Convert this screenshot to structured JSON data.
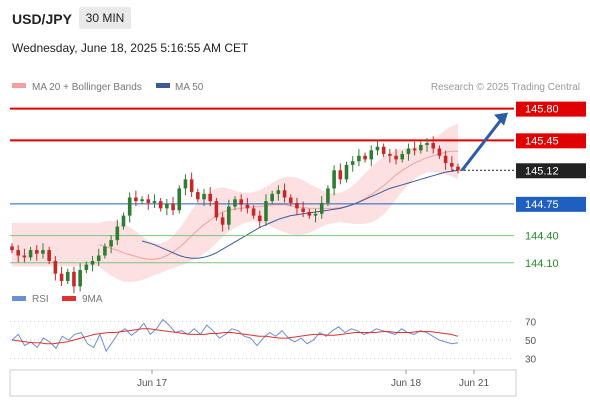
{
  "header": {
    "symbol": "USD/JPY",
    "timeframe": "30 MIN",
    "datetime": "Wednesday, June 18, 2025 5:16:55 AM CET"
  },
  "legend": {
    "ma20": "MA 20 + Bollinger Bands",
    "ma50": "MA 50",
    "credit": "Research © 2025 Trading Central"
  },
  "colors": {
    "resistance": "#e00000",
    "support_blue": "#1f5fbf",
    "support_green": "#7cc47c",
    "up_candle": "#2e7d32",
    "down_candle": "#c62828",
    "bollinger_fill": "#fde0e2",
    "ma20": "#f2a0a0",
    "ma50": "#3a5a9a",
    "rsi": "#6b8fd6",
    "rsi_ma": "#e03030"
  },
  "chart_data": {
    "type": "candlestick",
    "price_range": [
      143.8,
      145.95
    ],
    "current_price": 145.12,
    "levels": [
      {
        "value": 145.8,
        "label": "145.80",
        "kind": "resistance",
        "color": "#e00000"
      },
      {
        "value": 145.45,
        "label": "145.45",
        "kind": "resistance",
        "color": "#e00000"
      },
      {
        "value": 144.75,
        "label": "144.75",
        "kind": "pivot",
        "color": "#1f5fbf"
      },
      {
        "value": 144.4,
        "label": "144.40",
        "kind": "support",
        "color": "#2a8a2a"
      },
      {
        "value": 144.1,
        "label": "144.10",
        "kind": "support",
        "color": "#2a8a2a"
      }
    ],
    "closes": [
      144.24,
      144.18,
      144.16,
      144.24,
      144.2,
      144.24,
      144.12,
      143.98,
      143.9,
      144.0,
      143.84,
      144.02,
      144.08,
      144.12,
      144.18,
      144.28,
      144.35,
      144.5,
      144.62,
      144.82,
      144.78,
      144.8,
      144.76,
      144.78,
      144.7,
      144.75,
      144.68,
      144.92,
      145.02,
      144.88,
      144.8,
      144.86,
      144.78,
      144.6,
      144.52,
      144.72,
      144.8,
      144.74,
      144.7,
      144.62,
      144.56,
      144.78,
      144.86,
      144.9,
      144.82,
      144.76,
      144.7,
      144.66,
      144.62,
      144.64,
      144.76,
      144.92,
      145.12,
      145.02,
      145.18,
      145.22,
      145.28,
      145.24,
      145.34,
      145.38,
      145.3,
      145.28,
      145.24,
      145.3,
      145.36,
      145.34,
      145.4,
      145.42,
      145.36,
      145.28,
      145.2,
      145.16,
      145.12
    ],
    "ma20": [
      144.3,
      144.28,
      144.26,
      144.24,
      144.21,
      144.19,
      144.17,
      144.15,
      144.14,
      144.14,
      144.15,
      144.18,
      144.22,
      144.27,
      144.33,
      144.4,
      144.46,
      144.52,
      144.57,
      144.62,
      144.66,
      144.68,
      144.69,
      144.7,
      144.71,
      144.72,
      144.72,
      144.73,
      144.74,
      144.74,
      144.74,
      144.73,
      144.72,
      144.71,
      144.7,
      144.7,
      144.7,
      144.7,
      144.7,
      144.71,
      144.72,
      144.74,
      144.77,
      144.81,
      144.85,
      144.9,
      144.95,
      145.01,
      145.07,
      145.12,
      145.16,
      145.2,
      145.23,
      145.26,
      145.28,
      145.3,
      145.32,
      145.33,
      145.33
    ],
    "ma50": [
      144.34,
      144.32,
      144.3,
      144.27,
      144.24,
      144.21,
      144.18,
      144.16,
      144.15,
      144.15,
      144.16,
      144.18,
      144.21,
      144.25,
      144.29,
      144.33,
      144.37,
      144.41,
      144.45,
      144.49,
      144.52,
      144.55,
      144.58,
      144.6,
      144.62,
      144.63,
      144.64,
      144.65,
      144.66,
      144.67,
      144.68,
      144.69,
      144.7,
      144.72,
      144.74,
      144.77,
      144.8,
      144.83,
      144.86,
      144.89,
      144.92,
      144.94,
      144.96,
      144.98,
      145.0,
      145.02,
      145.04,
      145.06,
      145.08,
      145.1,
      145.11,
      145.12
    ],
    "forecast_target": 145.8,
    "rsi": {
      "label": "RSI",
      "ma_label": "9MA",
      "ticks": [
        70,
        50,
        30
      ],
      "range": [
        20,
        80
      ],
      "values": [
        50,
        56,
        44,
        48,
        42,
        52,
        48,
        41,
        54,
        50,
        56,
        58,
        46,
        42,
        56,
        38,
        48,
        58,
        62,
        55,
        60,
        68,
        56,
        62,
        72,
        66,
        58,
        60,
        56,
        62,
        56,
        66,
        60,
        52,
        56,
        62,
        60,
        54,
        52,
        44,
        52,
        58,
        54,
        60,
        52,
        48,
        52,
        46,
        50,
        58,
        54,
        60,
        64,
        58,
        62,
        60,
        56,
        58,
        62,
        60,
        58,
        56,
        62,
        58,
        56,
        60,
        58,
        54,
        50,
        48,
        46,
        47
      ],
      "ma": [
        50,
        49,
        48,
        47,
        47,
        46,
        46,
        47,
        48,
        50,
        52,
        54,
        56,
        57,
        58,
        58,
        59,
        60,
        61,
        62,
        62,
        61,
        60,
        59,
        58,
        57,
        56,
        56,
        56,
        57,
        57,
        58,
        58,
        57,
        56,
        55,
        54,
        54,
        53,
        52,
        52,
        53,
        54,
        55,
        56,
        56,
        55,
        55,
        56,
        57,
        58,
        58,
        58,
        58,
        59,
        59,
        58,
        58,
        58,
        59,
        59,
        59,
        58,
        57,
        56,
        54
      ]
    },
    "x_labels": [
      "Jun 17",
      "Jun 18",
      "Jun 21"
    ]
  }
}
